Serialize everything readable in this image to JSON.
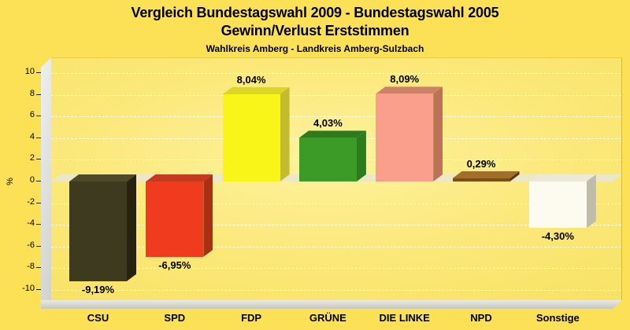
{
  "title": {
    "line1": "Vergleich Bundestagswahl 2009 - Bundestagswahl 2005",
    "line2": "Gewinn/Verlust Erststimmen",
    "subtitle": "Wahlkreis Amberg - Landkreis Amberg-Sulzbach"
  },
  "y_axis": {
    "unit_label": "%",
    "ticks": [
      10,
      8,
      6,
      4,
      2,
      0,
      -2,
      -4,
      -6,
      -8,
      -10
    ]
  },
  "chart_data": {
    "type": "bar",
    "title": "Vergleich Bundestagswahl 2009 - Bundestagswahl 2005 / Gewinn/Verlust Erststimmen",
    "subtitle": "Wahlkreis Amberg - Landkreis Amberg-Sulzbach",
    "categories": [
      "CSU",
      "SPD",
      "FDP",
      "GRÜNE",
      "DIE LINKE",
      "NPD",
      "Sonstige"
    ],
    "ids": [
      "csu",
      "spd",
      "fdp",
      "gruene",
      "die-linke",
      "npd",
      "sonstige"
    ],
    "values": [
      -9.19,
      -6.95,
      8.04,
      4.03,
      8.09,
      0.29,
      -4.3
    ],
    "value_labels": [
      "-9,19%",
      "-6,95%",
      "8,04%",
      "4,03%",
      "8,09%",
      "0,29%",
      "-4,30%"
    ],
    "bar_colors": [
      {
        "front": "#3E3A20",
        "top": "#4E4929",
        "side": "#262310"
      },
      {
        "front": "#F13B1E",
        "top": "#C33A1E",
        "side": "#A93013"
      },
      {
        "front": "#FAF518",
        "top": "#DCD626",
        "side": "#C4BC2D"
      },
      {
        "front": "#3C9A27",
        "top": "#2F7A1C",
        "side": "#2E7A1E"
      },
      {
        "front": "#FA9F8B",
        "top": "#CE8265",
        "side": "#BC7257"
      },
      {
        "front": "#7B4F13",
        "top": "#A06E2B",
        "side": "#5C3A0C"
      },
      {
        "front": "#FDFBF0",
        "top": "#ECE9D8",
        "side": "#BFBCAC"
      }
    ],
    "xlabel": "",
    "ylabel": "%",
    "ylim": [
      -10,
      10
    ],
    "ytick_step": 2,
    "grid": "horizontal dashed white",
    "legend": false,
    "style_3d": true
  },
  "colors": {
    "background": "#FCE156",
    "plot_fill_center": "#FEF29E",
    "plot_fill_edge": "#F8E164",
    "wall_gray": "#D8D8D4",
    "zero_band": "#ECE7C6",
    "grid_line": "#FFFFFF",
    "text": "#000000"
  }
}
